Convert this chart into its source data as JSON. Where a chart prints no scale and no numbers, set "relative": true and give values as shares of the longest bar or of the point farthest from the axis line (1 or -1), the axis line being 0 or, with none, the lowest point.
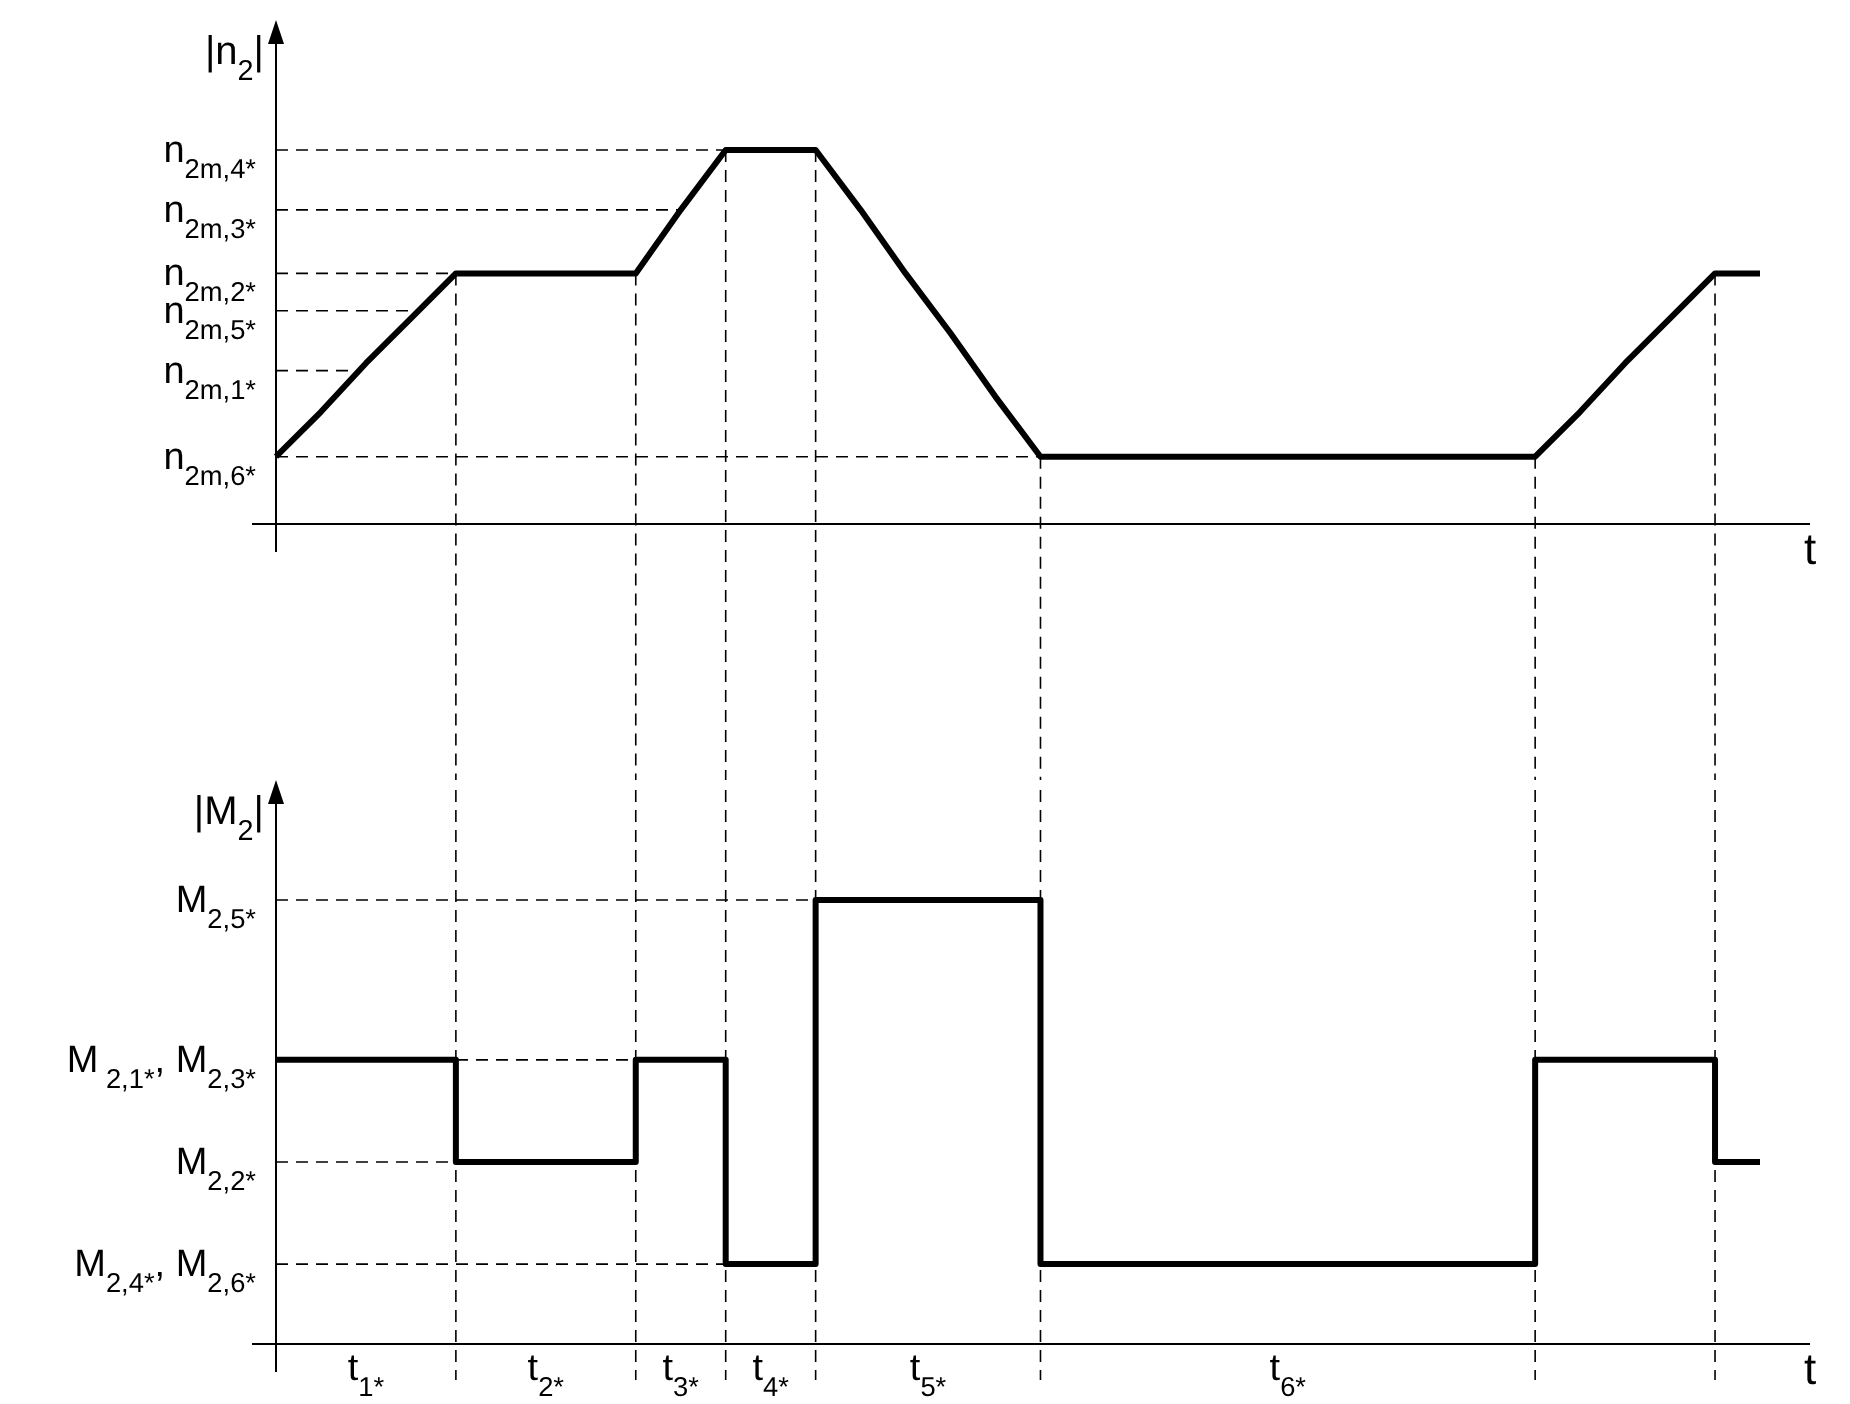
{
  "chart_data": [
    {
      "type": "line",
      "relative": true,
      "grid": "x",
      "ylabel": "|n$_{2}$|",
      "xlabel": "t",
      "categories": [
        null,
        null,
        null,
        null,
        null,
        null,
        null,
        null,
        null,
        null,
        null,
        null,
        null,
        null,
        null,
        null,
        null,
        null,
        null,
        null,
        null,
        null,
        null,
        null,
        null,
        null,
        null,
        null,
        null,
        null,
        null,
        null,
        null,
        null
      ],
      "series": [
        {
          "color": "#000000",
          "values": [
            0.18,
            0.3,
            0.43,
            0.55,
            0.67,
            0.67,
            0.67,
            0.67,
            0.67,
            0.84,
            1,
            1,
            1,
            0.84,
            0.67,
            0.51,
            0.34,
            0.18,
            0.18,
            0.18,
            0.18,
            0.18,
            0.18,
            0.18,
            0.18,
            0.18,
            0.18,
            0.18,
            0.18,
            0.3,
            0.43,
            0.55,
            0.67,
            0.67
          ]
        }
      ],
      "ref_lines": [
        {
          "axis": "y",
          "value": 1,
          "label": "n$_{2m,4*}$",
          "line_style": "dashed"
        },
        {
          "axis": "y",
          "value": 0.84,
          "label": "n$_{2m,3*}$",
          "line_style": "dashed"
        },
        {
          "axis": "y",
          "value": 0.67,
          "label": "n$_{2m,2*}$",
          "line_style": "dashed"
        },
        {
          "axis": "y",
          "value": 0.57,
          "label": "n$_{2m,5*}$",
          "line_style": "dashed"
        },
        {
          "axis": "y",
          "value": 0.41,
          "label": "n$_{2m,1*}$",
          "line_style": "dashed"
        },
        {
          "axis": "y",
          "value": 0.18,
          "label": "n$_{2m,6*}$",
          "line_style": "dashed"
        }
      ]
    },
    {
      "type": "step",
      "relative": true,
      "grid": "x",
      "ylabel": "|M$_{2}$|",
      "xlabel": "t",
      "categories": [
        null,
        null,
        null,
        null,
        null,
        null,
        null,
        null,
        null,
        null,
        null,
        null,
        null,
        null,
        null,
        null,
        null,
        null,
        null,
        null,
        null,
        null,
        null,
        null,
        null,
        null,
        null,
        null,
        null,
        null,
        null,
        null,
        null,
        null
      ],
      "series": [
        {
          "color": "#000000",
          "values": [
            0.64,
            0.64,
            0.64,
            0.64,
            0.41,
            0.41,
            0.41,
            0.41,
            0.64,
            0.64,
            0.18,
            0.18,
            1,
            1,
            1,
            1,
            1,
            0.18,
            0.18,
            0.18,
            0.18,
            0.18,
            0.18,
            0.18,
            0.18,
            0.18,
            0.18,
            0.18,
            0.64,
            0.64,
            0.64,
            0.64,
            0.41,
            0.41
          ]
        }
      ],
      "ref_lines": [
        {
          "axis": "y",
          "value": 1,
          "label": "M$_{2,5*}$",
          "line_style": "dashed"
        },
        {
          "axis": "y",
          "value": 0.64,
          "label": "M$_{ 2,1*}$, M$_{2,3*}$",
          "line_style": "dashed"
        },
        {
          "axis": "y",
          "value": 0.41,
          "label": "M$_{2,2*}$",
          "line_style": "dashed"
        },
        {
          "axis": "y",
          "value": 0.18,
          "label": "M$_{2,4*}$, M$_{2,6*}$",
          "line_style": "dashed"
        }
      ],
      "annotations": [
        "t$_{1*}$",
        "t$_{2*}$",
        "t$_{3*}$",
        "t$_{4*}$",
        "t$_{5*}$",
        "t$_{6*}$"
      ]
    }
  ]
}
